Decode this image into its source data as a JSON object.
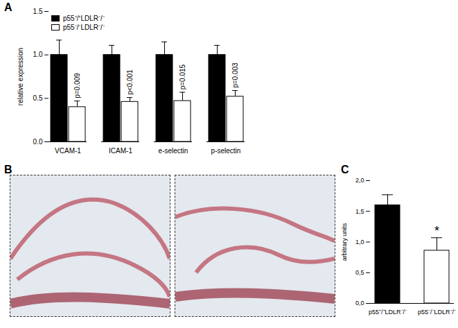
{
  "chart_data": [
    {
      "type": "bar",
      "title": "A",
      "categories": [
        "VCAM-1",
        "ICAM-1",
        "e-selectin",
        "p-selectin"
      ],
      "series": [
        {
          "name": "p55⁺/⁺LDLR⁻/⁻",
          "color": "#000000",
          "values": [
            1.0,
            1.0,
            1.0,
            1.0
          ],
          "errors": [
            0.17,
            0.11,
            0.15,
            0.11
          ]
        },
        {
          "name": "p55⁻/⁻LDLR⁻/⁻",
          "color": "#ffffff",
          "values": [
            0.4,
            0.46,
            0.47,
            0.52
          ],
          "errors": [
            0.07,
            0.05,
            0.1,
            0.07
          ],
          "annotations": [
            "p=0.009",
            "p<0.001",
            "p=0.015",
            "p=0.003"
          ]
        }
      ],
      "y_label": "relative expression",
      "ylim": [
        0,
        1.5
      ],
      "yticks": [
        {
          "value": 0,
          "label": "0.0"
        },
        {
          "value": 0.5,
          "label": "0.5"
        },
        {
          "value": 1.0,
          "label": "1.0"
        },
        {
          "value": 1.5,
          "label": "1.5"
        }
      ],
      "legend": "upper left"
    },
    {
      "type": "image",
      "title": "B"
    },
    {
      "type": "bar",
      "title": "C",
      "categories": [
        "p55⁺/⁺LDLR⁻/⁻",
        "p55⁻/⁻LDLR⁻/⁻"
      ],
      "values": [
        1.6,
        0.86
      ],
      "errors": [
        0.17,
        0.21
      ],
      "colors": [
        "#000000",
        "#ffffff"
      ],
      "annotations": [
        {
          "category": "p55⁻/⁻LDLR⁻/⁻",
          "text": "*"
        }
      ],
      "y_label": "arbitrary units",
      "ylim": [
        0,
        2.0
      ],
      "yticks": [
        {
          "value": 0,
          "label": "0,0"
        },
        {
          "value": 0.5,
          "label": "0,5"
        },
        {
          "value": 1.0,
          "label": "1,0"
        },
        {
          "value": 1.5,
          "label": "1,5"
        },
        {
          "value": 2.0,
          "label": "2,0"
        }
      ]
    }
  ]
}
